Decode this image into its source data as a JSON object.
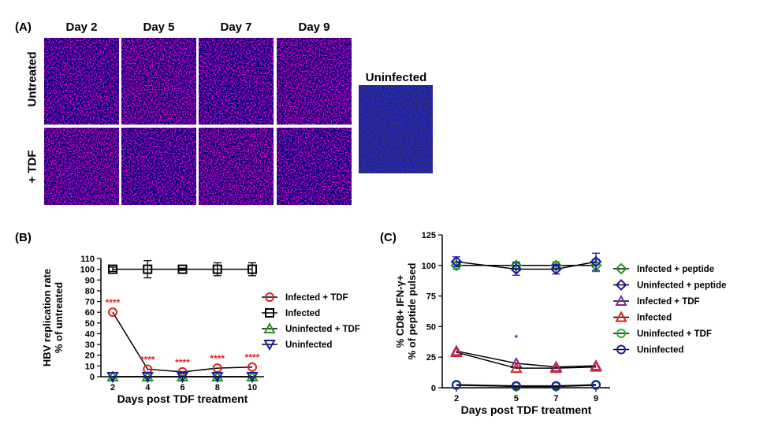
{
  "panel_a": {
    "label": "(A)",
    "columns": [
      "Day 2",
      "Day 5",
      "Day 7",
      "Day 9"
    ],
    "rows": [
      "Untreated",
      "+ TDF"
    ],
    "uninfected_label": "Uninfected"
  },
  "panel_b": {
    "label": "(B)"
  },
  "panel_c": {
    "label": "(C)"
  },
  "chart_data": [
    {
      "type": "line",
      "panel": "(B)",
      "xlabel": "Days post TDF treatment",
      "ylabel": [
        "HBV replication rate",
        "% of untreated"
      ],
      "x": [
        2,
        4,
        6,
        8,
        10
      ],
      "xlim": [
        2,
        10
      ],
      "ylim": [
        0,
        110
      ],
      "yticks": [
        0,
        10,
        20,
        30,
        40,
        50,
        60,
        70,
        80,
        90,
        100,
        110
      ],
      "series": [
        {
          "name": "Infected + TDF",
          "color": "#e02020",
          "marker": "circle",
          "values": [
            60,
            7,
            4.5,
            8,
            9
          ]
        },
        {
          "name": "Infected",
          "color": "#000000",
          "marker": "square",
          "values": [
            100,
            100,
            100,
            100,
            100
          ],
          "err": [
            2,
            8,
            1,
            6,
            6
          ]
        },
        {
          "name": "Uninfected + TDF",
          "color": "#1a9a1a",
          "marker": "triangle-up",
          "values": [
            0,
            0,
            0,
            0,
            0
          ]
        },
        {
          "name": "Uninfected",
          "color": "#1a1aa0",
          "marker": "triangle-down",
          "values": [
            0,
            0,
            0,
            0,
            0
          ]
        }
      ],
      "annotations": [
        {
          "x": 2,
          "y": 60,
          "text": "****"
        },
        {
          "x": 4,
          "y": 7,
          "text": "****"
        },
        {
          "x": 6,
          "y": 4.5,
          "text": "****"
        },
        {
          "x": 8,
          "y": 8,
          "text": "****"
        },
        {
          "x": 10,
          "y": 9,
          "text": "****"
        }
      ],
      "legend": "right"
    },
    {
      "type": "line",
      "panel": "(C)",
      "xlabel": "Days post TDF treatment",
      "ylabel": [
        "% CD8+ IFN-γ+",
        "% of peptide pulsed"
      ],
      "x": [
        2,
        5,
        7,
        9
      ],
      "xlim": [
        2,
        9
      ],
      "ylim": [
        0,
        125
      ],
      "yticks": [
        0,
        25,
        50,
        75,
        100,
        125
      ],
      "series": [
        {
          "name": "Infected + peptide",
          "color": "#1a9a1a",
          "marker": "diamond",
          "values": [
            100,
            100,
            100,
            100
          ],
          "err": [
            3,
            3,
            3,
            5
          ]
        },
        {
          "name": "Uninfected + peptide",
          "color": "#1a1aa0",
          "marker": "diamond",
          "values": [
            103,
            97,
            97,
            103
          ],
          "err": [
            4,
            5,
            4,
            7
          ]
        },
        {
          "name": "Infected + TDF",
          "color": "#7a2aa0",
          "marker": "triangle-up",
          "values": [
            30,
            20,
            17,
            18
          ]
        },
        {
          "name": "Infected",
          "color": "#e02020",
          "marker": "triangle-up",
          "values": [
            29,
            16,
            16,
            17
          ]
        },
        {
          "name": "Uninfected + TDF",
          "color": "#22bb22",
          "marker": "circle",
          "values": [
            2,
            1,
            1,
            2
          ]
        },
        {
          "name": "Uninfected",
          "color": "#1a1aa0",
          "marker": "circle",
          "values": [
            2.5,
            1.5,
            1.5,
            2.5
          ]
        }
      ],
      "annotations": [
        {
          "x": 5,
          "y": 33,
          "text": "*"
        }
      ],
      "legend": "right"
    }
  ]
}
